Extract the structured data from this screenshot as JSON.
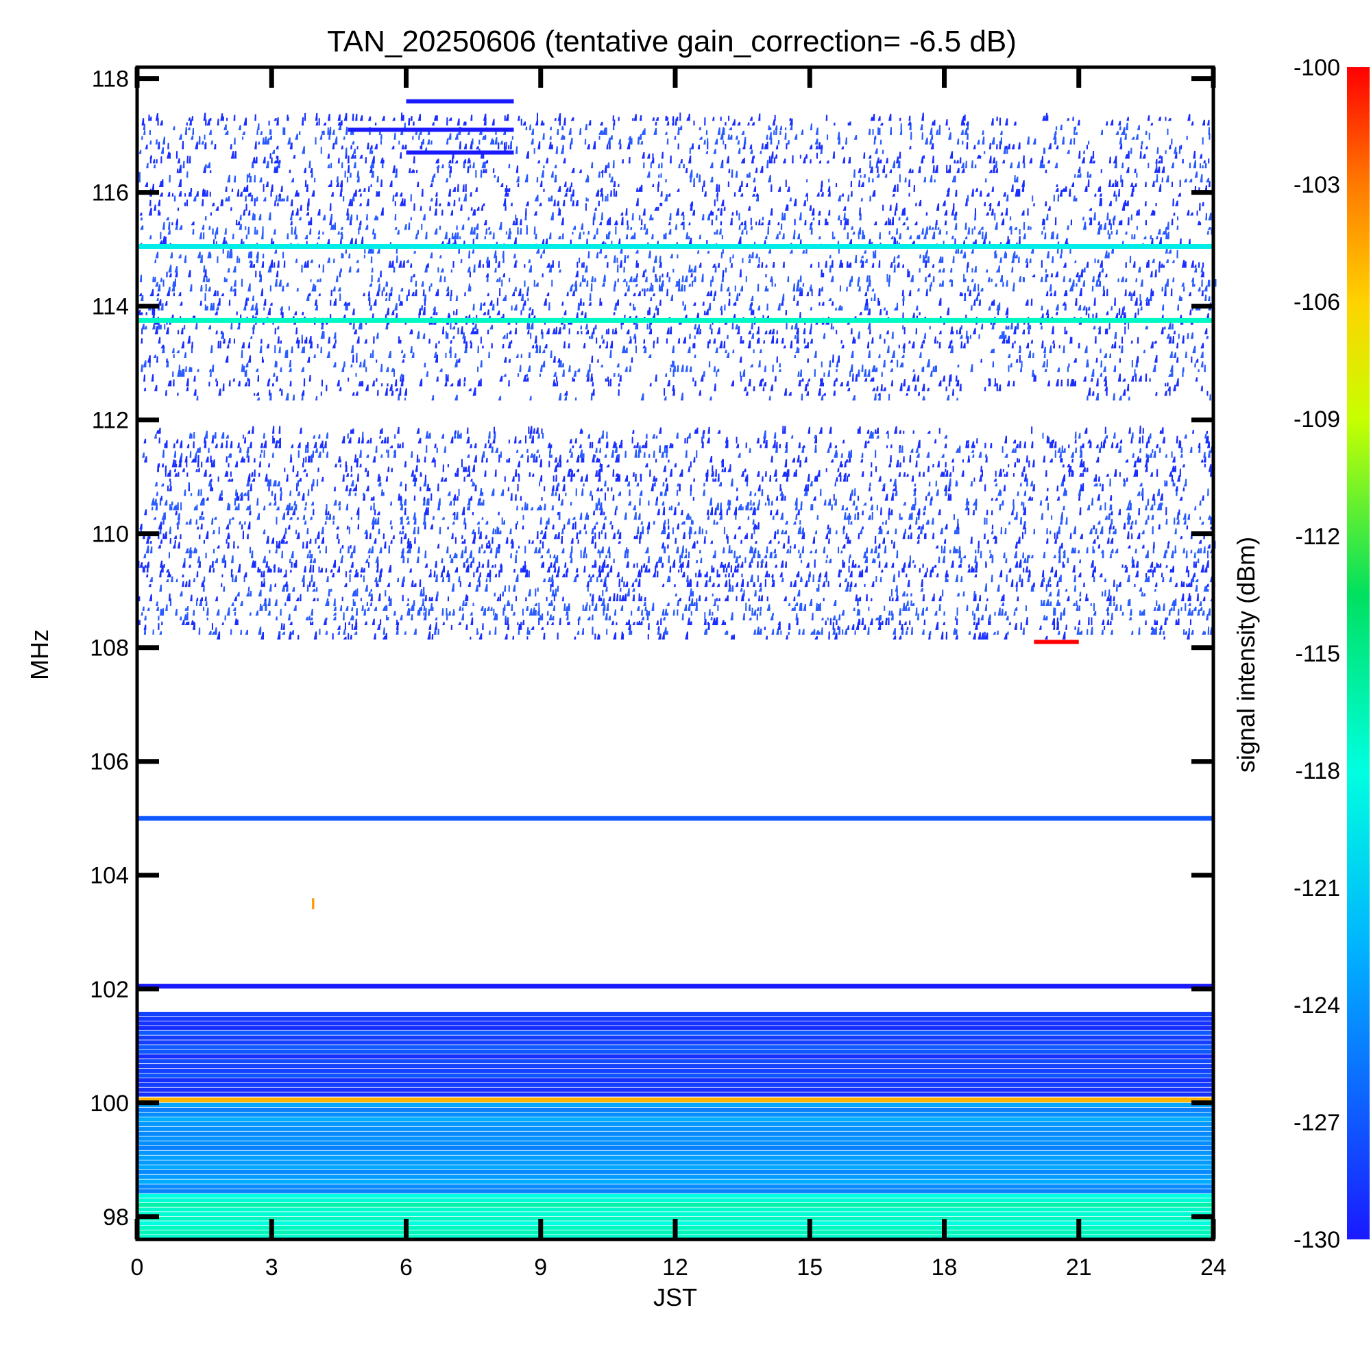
{
  "chart_data": {
    "type": "heatmap",
    "title": "TAN_20250606 (tentative gain_correction= -6.5 dB)",
    "xlabel": "JST",
    "ylabel": "MHz",
    "xlim": [
      0,
      24
    ],
    "ylim": [
      97.6,
      118.2
    ],
    "xticks": [
      "0",
      "3",
      "6",
      "9",
      "12",
      "15",
      "18",
      "21",
      "24"
    ],
    "xtick_values": [
      0,
      3,
      6,
      9,
      12,
      15,
      18,
      21,
      24
    ],
    "yticks": [
      "98",
      "100",
      "102",
      "104",
      "106",
      "108",
      "110",
      "112",
      "114",
      "116",
      "118"
    ],
    "ytick_values": [
      98,
      100,
      102,
      104,
      106,
      108,
      110,
      112,
      114,
      116,
      118
    ],
    "colorbar": {
      "label": "signal intensity (dBm)",
      "range": [
        -130,
        -100
      ],
      "ticks": [
        "-100",
        "-103",
        "-106",
        "-109",
        "-112",
        "-115",
        "-118",
        "-121",
        "-124",
        "-127",
        "-130"
      ],
      "tick_values": [
        -100,
        -103,
        -106,
        -109,
        -112,
        -115,
        -118,
        -121,
        -124,
        -127,
        -130
      ],
      "colormap": "rainbow (blue → cyan → green → yellow → red)"
    },
    "data_gap": {
      "x": 20.05,
      "note": "vertical white gap (no data)"
    },
    "bands": [
      {
        "name": "sparse-noise-upper",
        "fmin": 112.3,
        "fmax": 117.3,
        "level": -130,
        "density": 0.45
      },
      {
        "name": "dense-noise",
        "fmin": 108.1,
        "fmax": 111.8,
        "level": -130,
        "density": 0.6
      },
      {
        "name": "carrier",
        "freq": 115.05,
        "level": -119
      },
      {
        "name": "carrier",
        "freq": 113.75,
        "level": -117
      },
      {
        "name": "carrier",
        "freq": 105.0,
        "level": -127
      },
      {
        "name": "carrier",
        "freq": 102.05,
        "level": -130
      },
      {
        "name": "broadband",
        "fmin": 100.1,
        "fmax": 101.6,
        "level": -128
      },
      {
        "name": "carrier",
        "freq": 100.05,
        "level": -105
      },
      {
        "name": "broadband",
        "fmin": 98.4,
        "fmax": 100.0,
        "level": -124
      },
      {
        "name": "broadband",
        "fmin": 97.6,
        "fmax": 98.4,
        "level": -117
      }
    ],
    "segments": [
      {
        "freq": 117.6,
        "t0": 6.0,
        "t1": 8.4,
        "level": -130
      },
      {
        "freq": 117.1,
        "t0": 4.7,
        "t1": 8.4,
        "level": -130
      },
      {
        "freq": 116.7,
        "t0": 6.0,
        "t1": 8.4,
        "level": -130
      },
      {
        "freq": 108.1,
        "t0": 20.0,
        "t1": 21.0,
        "level": -100
      },
      {
        "freq": 103.5,
        "t0": 3.9,
        "t1": 3.95,
        "level": -104
      }
    ],
    "grid": false,
    "legend": "none"
  }
}
